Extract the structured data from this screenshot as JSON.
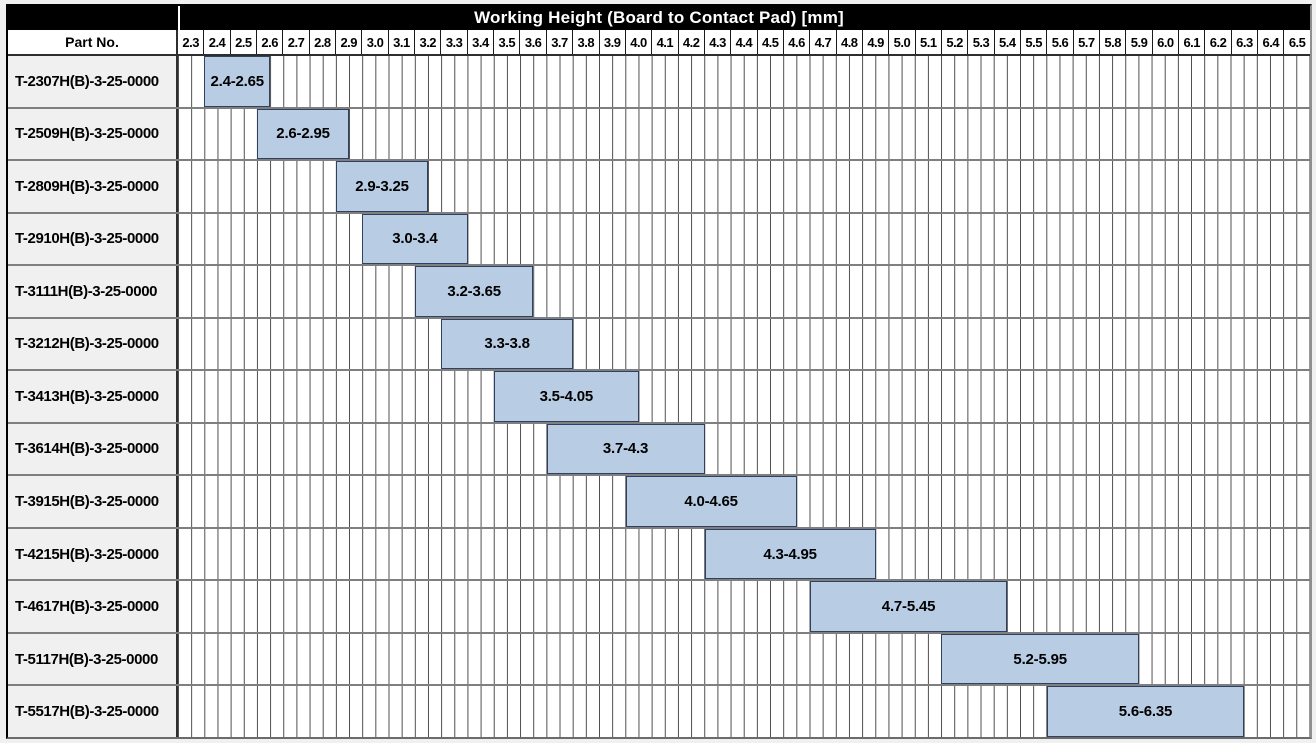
{
  "header": {
    "part_no_label": "Part No."
  },
  "colors": {
    "bar_fill": "#b8cce4",
    "bar_border": "#31405e",
    "grid_line": "#4c4c4c",
    "row_separator": "#7f7f7f",
    "title_bg": "#000000",
    "title_text": "#ffffff",
    "part_column_bg": "#f0f0f0"
  },
  "chart_data": {
    "type": "bar",
    "variant": "horizontal-range",
    "title": "Working Height (Board to Contact Pad) [mm]",
    "x_axis": {
      "min": 2.3,
      "max": 6.6,
      "major_step": 0.1,
      "minor_grid_step": 0.05,
      "tick_labels": [
        "2.3",
        "2.4",
        "2.5",
        "2.6",
        "2.7",
        "2.8",
        "2.9",
        "3.0",
        "3.1",
        "3.2",
        "3.3",
        "3.4",
        "3.5",
        "3.6",
        "3.7",
        "3.8",
        "3.9",
        "4.0",
        "4.1",
        "4.2",
        "4.3",
        "4.4",
        "4.5",
        "4.6",
        "4.7",
        "4.8",
        "4.9",
        "5.0",
        "5.1",
        "5.2",
        "5.3",
        "5.4",
        "5.5",
        "5.6",
        "5.7",
        "5.8",
        "5.9",
        "6.0",
        "6.1",
        "6.2",
        "6.3",
        "6.4",
        "6.5"
      ]
    },
    "grid": true,
    "legend": false,
    "rows": [
      {
        "part_no": "T-2307H(B)-3-25-0000",
        "start": 2.4,
        "end": 2.65,
        "label": "2.4-2.65"
      },
      {
        "part_no": "T-2509H(B)-3-25-0000",
        "start": 2.6,
        "end": 2.95,
        "label": "2.6-2.95"
      },
      {
        "part_no": "T-2809H(B)-3-25-0000",
        "start": 2.9,
        "end": 3.25,
        "label": "2.9-3.25"
      },
      {
        "part_no": "T-2910H(B)-3-25-0000",
        "start": 3.0,
        "end": 3.4,
        "label": "3.0-3.4"
      },
      {
        "part_no": "T-3111H(B)-3-25-0000",
        "start": 3.2,
        "end": 3.65,
        "label": "3.2-3.65"
      },
      {
        "part_no": "T-3212H(B)-3-25-0000",
        "start": 3.3,
        "end": 3.8,
        "label": "3.3-3.8"
      },
      {
        "part_no": "T-3413H(B)-3-25-0000",
        "start": 3.5,
        "end": 4.05,
        "label": "3.5-4.05"
      },
      {
        "part_no": "T-3614H(B)-3-25-0000",
        "start": 3.7,
        "end": 4.3,
        "label": "3.7-4.3"
      },
      {
        "part_no": "T-3915H(B)-3-25-0000",
        "start": 4.0,
        "end": 4.65,
        "label": "4.0-4.65"
      },
      {
        "part_no": "T-4215H(B)-3-25-0000",
        "start": 4.3,
        "end": 4.95,
        "label": "4.3-4.95"
      },
      {
        "part_no": "T-4617H(B)-3-25-0000",
        "start": 4.7,
        "end": 5.45,
        "label": "4.7-5.45"
      },
      {
        "part_no": "T-5117H(B)-3-25-0000",
        "start": 5.2,
        "end": 5.95,
        "label": "5.2-5.95"
      },
      {
        "part_no": "T-5517H(B)-3-25-0000",
        "start": 5.6,
        "end": 6.35,
        "label": "5.6-6.35"
      }
    ]
  }
}
